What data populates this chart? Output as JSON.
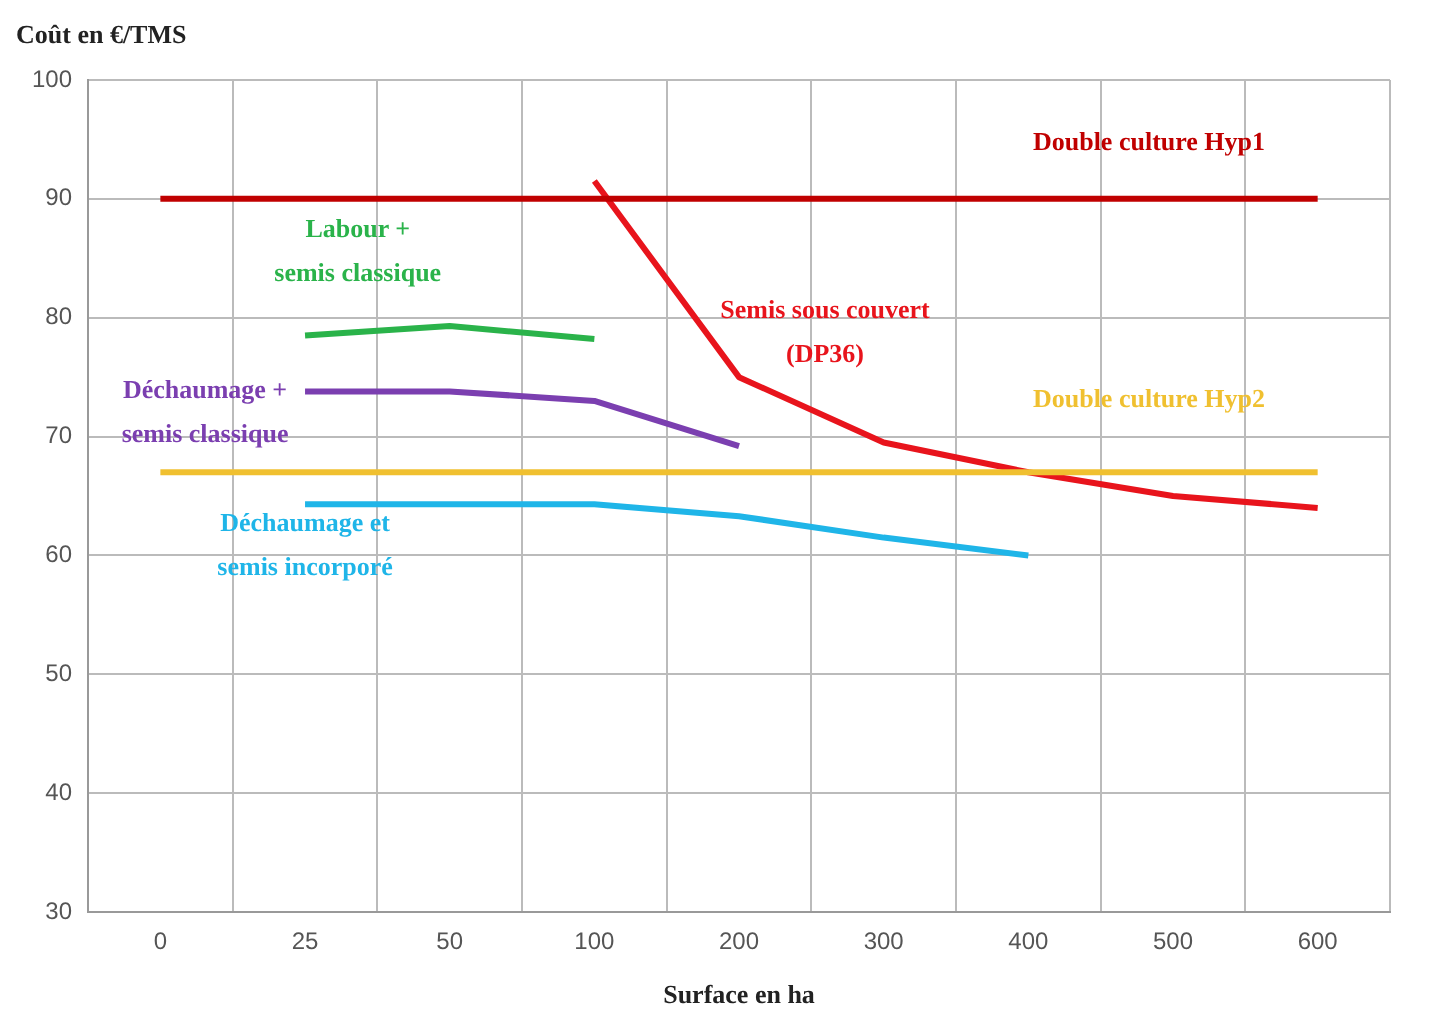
{
  "chart_data": {
    "type": "line",
    "ylabel": "Coût en €/TMS",
    "xlabel": "Surface en ha",
    "categories": [
      "0",
      "25",
      "50",
      "100",
      "200",
      "300",
      "400",
      "500",
      "600"
    ],
    "ylim": [
      30,
      100
    ],
    "yticks": [
      30,
      40,
      50,
      60,
      70,
      80,
      90,
      100
    ],
    "grid": true,
    "legend": false,
    "marker": "none",
    "line_style": "solid",
    "series": [
      {
        "name": "Double culture Hyp1",
        "color": "#c00000",
        "values": [
          90,
          90,
          90,
          90,
          90,
          90,
          90,
          90,
          90
        ]
      },
      {
        "name": "Double culture Hyp2",
        "color": "#f0c030",
        "values": [
          67,
          67,
          67,
          67,
          67,
          67,
          67,
          67,
          67
        ]
      },
      {
        "name": "Semis sous couvert (DP36)",
        "color": "#e8141c",
        "values": [
          null,
          null,
          null,
          91.5,
          75,
          69.5,
          67,
          65,
          64
        ]
      },
      {
        "name": "Labour + semis classique",
        "color": "#2ab34a",
        "values": [
          null,
          78.5,
          79.3,
          78.2,
          null,
          null,
          null,
          null,
          null
        ]
      },
      {
        "name": "Déchaumage + semis classique",
        "color": "#7b3fb0",
        "values": [
          null,
          73.8,
          73.8,
          73,
          69.2,
          null,
          null,
          null,
          null
        ]
      },
      {
        "name": "Déchaumage et semis incorporé",
        "color": "#1fb5e8",
        "values": [
          null,
          64.3,
          64.3,
          64.3,
          63.3,
          61.5,
          60,
          null,
          null
        ]
      }
    ]
  }
}
